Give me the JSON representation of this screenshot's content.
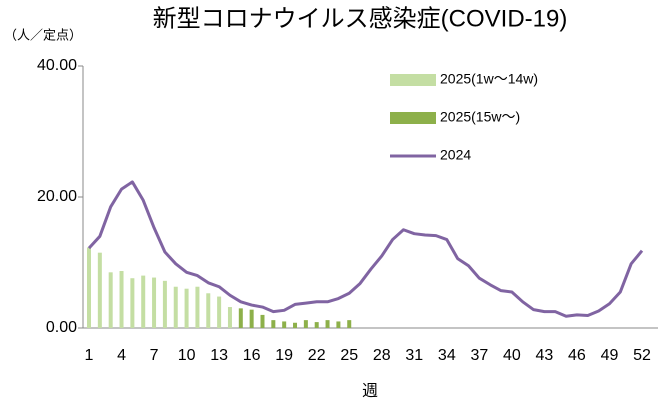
{
  "chart_data": {
    "type": "bar-line",
    "title": "新型コロナウイルス感染症(COVID-19)",
    "y_label": "（人／定点）",
    "x_label": "週",
    "categories": [
      "1",
      null,
      null,
      "4",
      null,
      null,
      "7",
      null,
      null,
      "10",
      null,
      null,
      "13",
      null,
      null,
      "16",
      null,
      null,
      "19",
      null,
      null,
      "22",
      null,
      null,
      "25",
      null,
      null,
      "28",
      null,
      null,
      "31",
      null,
      null,
      "34",
      null,
      null,
      "37",
      null,
      null,
      "40",
      null,
      null,
      "43",
      null,
      null,
      "46",
      null,
      null,
      "49",
      null,
      null,
      "52"
    ],
    "series": [
      {
        "name": "2025(1w〜14w)",
        "kind": "bar",
        "color": "#c4dea3",
        "values": [
          12.3,
          11.5,
          8.5,
          8.7,
          7.6,
          8.0,
          7.7,
          7.2,
          6.3,
          6.0,
          6.3,
          5.3,
          4.8,
          3.2,
          null,
          null,
          null,
          null,
          null,
          null,
          null,
          null,
          null,
          null,
          null,
          null,
          null,
          null,
          null,
          null,
          null,
          null,
          null,
          null,
          null,
          null,
          null,
          null,
          null,
          null,
          null,
          null,
          null,
          null,
          null,
          null,
          null,
          null,
          null,
          null,
          null,
          null
        ]
      },
      {
        "name": "2025(15w〜)",
        "kind": "bar",
        "color": "#8db04a",
        "values": [
          null,
          null,
          null,
          null,
          null,
          null,
          null,
          null,
          null,
          null,
          null,
          null,
          null,
          null,
          3.0,
          2.8,
          2.0,
          1.2,
          1.0,
          0.8,
          1.2,
          0.9,
          1.2,
          1.0,
          1.2,
          null,
          null,
          null,
          null,
          null,
          null,
          null,
          null,
          null,
          null,
          null,
          null,
          null,
          null,
          null,
          null,
          null,
          null,
          null,
          null,
          null,
          null,
          null,
          null,
          null,
          null,
          null
        ]
      },
      {
        "name": "2024",
        "kind": "line",
        "color": "#8064a2",
        "values": [
          12.2,
          14.0,
          18.5,
          21.2,
          22.3,
          19.5,
          15.3,
          11.6,
          9.8,
          8.5,
          8.0,
          6.9,
          6.3,
          5.0,
          4.0,
          3.5,
          3.2,
          2.5,
          2.7,
          3.6,
          3.8,
          4.0,
          4.0,
          4.5,
          5.3,
          6.8,
          9.0,
          11.0,
          13.5,
          15.0,
          14.4,
          14.2,
          14.1,
          13.5,
          10.6,
          9.5,
          7.6,
          6.6,
          5.7,
          5.5,
          4.0,
          2.8,
          2.5,
          2.5,
          1.8,
          2.0,
          1.9,
          2.6,
          3.7,
          5.5,
          9.8,
          11.8
        ]
      }
    ],
    "ylim": [
      0,
      40
    ],
    "yticks": [
      {
        "value": 0,
        "label": "0.00"
      },
      {
        "value": 20,
        "label": "20.00"
      },
      {
        "value": 40,
        "label": "40.00"
      }
    ],
    "grid": false
  }
}
